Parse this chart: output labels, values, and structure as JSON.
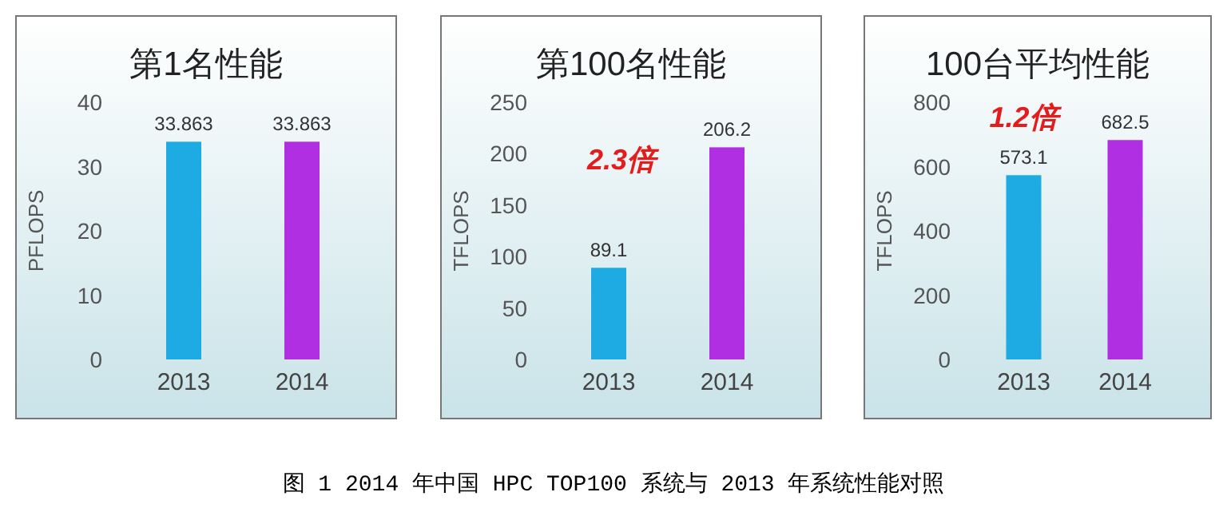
{
  "chart_data": [
    {
      "type": "bar",
      "title": "第1名性能",
      "ylabel": "PFLOPS",
      "categories": [
        "2013",
        "2014"
      ],
      "values": [
        33.863,
        33.863
      ],
      "colors": [
        "#1eaae2",
        "#b02fe3"
      ],
      "ylim": [
        0,
        40
      ],
      "yticks": [
        0,
        10,
        20,
        30,
        40
      ],
      "data_labels": true,
      "annotations": [
        "图 1 2014 年中国 HPC TOP100 系统与 2013 年系统性能对照"
      ]
    },
    {
      "type": "bar",
      "title": "第100名性能",
      "ylabel": "TFLOPS",
      "categories": [
        "2013",
        "2014"
      ],
      "values": [
        89.1,
        206.2
      ],
      "colors": [
        "#1eaae2",
        "#b02fe3"
      ],
      "ylim": [
        0,
        250
      ],
      "yticks": [
        0,
        50,
        100,
        150,
        200,
        250
      ],
      "data_labels": true,
      "annotations": [
        "2.3倍"
      ]
    },
    {
      "type": "bar",
      "title": "100台平均性能",
      "ylabel": "TFLOPS",
      "categories": [
        "2013",
        "2014"
      ],
      "values": [
        573.1,
        682.5
      ],
      "colors": [
        "#1eaae2",
        "#b02fe3"
      ],
      "ylim": [
        0,
        800
      ],
      "yticks": [
        0,
        200,
        400,
        600,
        800
      ],
      "data_labels": true,
      "annotations": [
        "1.2倍"
      ]
    }
  ]
}
